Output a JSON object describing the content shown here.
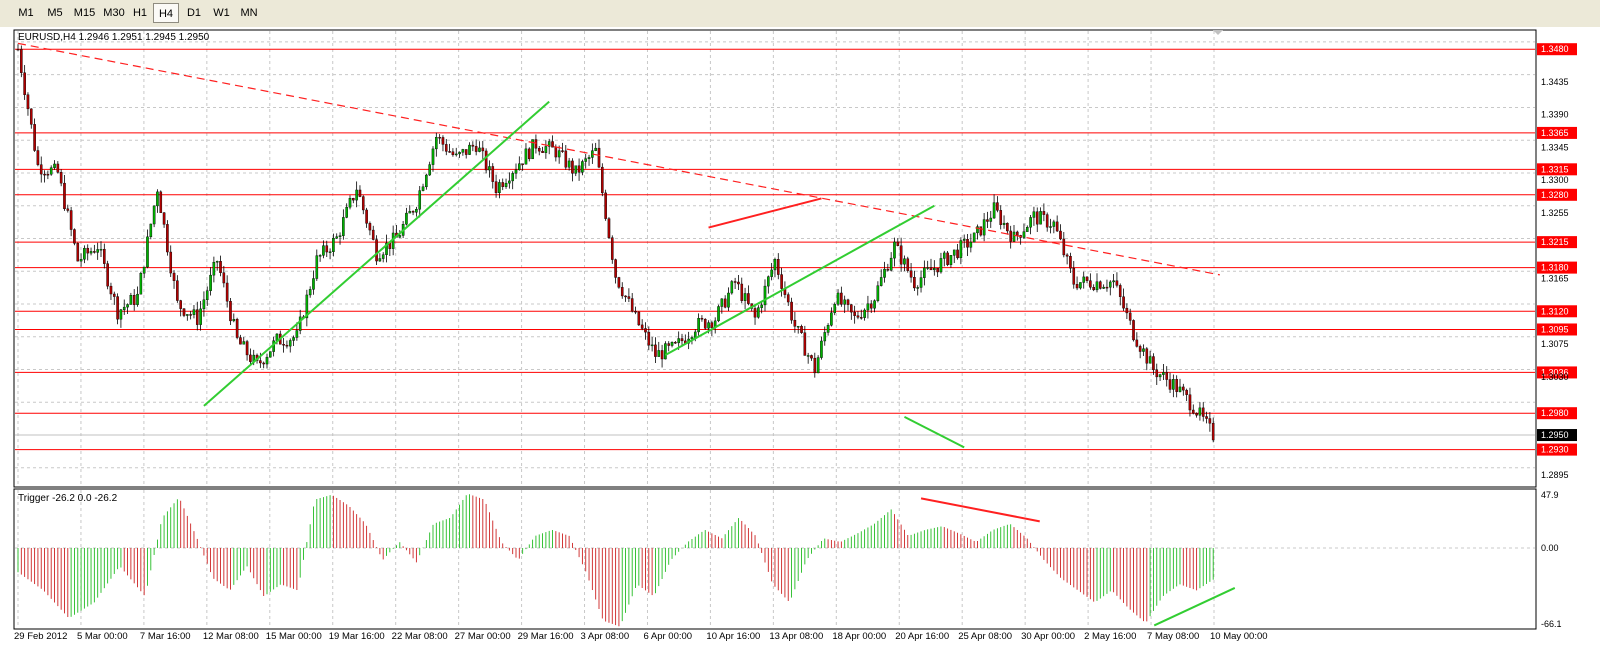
{
  "toolbar": {
    "timeframes": [
      {
        "label": "M1",
        "active": false
      },
      {
        "label": "M5",
        "active": false
      },
      {
        "label": "M15",
        "active": false
      },
      {
        "label": "M30",
        "active": false
      },
      {
        "label": "H1",
        "active": false
      },
      {
        "label": "H4",
        "active": true
      },
      {
        "label": "D1",
        "active": false
      },
      {
        "label": "W1",
        "active": false
      },
      {
        "label": "MN",
        "active": false
      }
    ]
  },
  "main_chart": {
    "header": "EURUSD,H4  1.2946 1.2951 1.2945 1.2950",
    "symbol": "EURUSD",
    "timeframe": "H4",
    "ohlc": {
      "open": 1.2946,
      "high": 1.2951,
      "low": 1.2945,
      "close": 1.295
    },
    "current_price": "1.2950",
    "price_axis_labels": [
      "1.3435",
      "1.3390",
      "1.3345",
      "1.3300",
      "1.3255",
      "1.3165",
      "1.3075",
      "1.3030",
      "1.2895"
    ],
    "level_labels": [
      "1.3480",
      "1.3365",
      "1.3315",
      "1.3280",
      "1.3215",
      "1.3180",
      "1.3120",
      "1.3095",
      "1.3036",
      "1.2980",
      "1.2930"
    ],
    "colors": {
      "bull": "#00b000",
      "bear": "#b00000",
      "level": "#ff0000",
      "trend_green": "#32cd32",
      "trend_red": "#ff2020"
    }
  },
  "chart_data": [
    {
      "type": "candlestick",
      "title": "EURUSD,H4",
      "ylim": [
        1.288,
        1.3505
      ],
      "x_tick_labels": [
        "29 Feb 2012",
        "5 Mar 00:00",
        "7 Mar 16:00",
        "12 Mar 08:00",
        "15 Mar 00:00",
        "19 Mar 16:00",
        "22 Mar 08:00",
        "27 Mar 00:00",
        "29 Mar 16:00",
        "3 Apr 08:00",
        "6 Apr 00:00",
        "10 Apr 16:00",
        "13 Apr 08:00",
        "18 Apr 00:00",
        "20 Apr 16:00",
        "25 Apr 08:00",
        "30 Apr 00:00",
        "2 May 16:00",
        "7 May 08:00",
        "10 May 00:00"
      ],
      "close_path": [
        [
          0,
          1.348
        ],
        [
          6,
          1.332
        ],
        [
          12,
          1.331
        ],
        [
          18,
          1.319
        ],
        [
          24,
          1.321
        ],
        [
          30,
          1.312
        ],
        [
          36,
          1.314
        ],
        [
          42,
          1.329
        ],
        [
          48,
          1.313
        ],
        [
          54,
          1.311
        ],
        [
          60,
          1.319
        ],
        [
          66,
          1.308
        ],
        [
          72,
          1.3045
        ],
        [
          78,
          1.308
        ],
        [
          84,
          1.3085
        ],
        [
          90,
          1.319
        ],
        [
          96,
          1.322
        ],
        [
          102,
          1.329
        ],
        [
          108,
          1.32
        ],
        [
          114,
          1.322
        ],
        [
          120,
          1.327
        ],
        [
          126,
          1.336
        ],
        [
          132,
          1.333
        ],
        [
          138,
          1.335
        ],
        [
          144,
          1.329
        ],
        [
          150,
          1.332
        ],
        [
          156,
          1.335
        ],
        [
          162,
          1.334
        ],
        [
          168,
          1.331
        ],
        [
          174,
          1.334
        ],
        [
          180,
          1.317
        ],
        [
          186,
          1.311
        ],
        [
          192,
          1.306
        ],
        [
          198,
          1.307
        ],
        [
          204,
          1.31
        ],
        [
          210,
          1.311
        ],
        [
          216,
          1.316
        ],
        [
          222,
          1.311
        ],
        [
          228,
          1.319
        ],
        [
          234,
          1.31
        ],
        [
          240,
          1.304
        ],
        [
          246,
          1.314
        ],
        [
          252,
          1.311
        ],
        [
          258,
          1.314
        ],
        [
          264,
          1.321
        ],
        [
          270,
          1.316
        ],
        [
          276,
          1.318
        ],
        [
          282,
          1.32
        ],
        [
          288,
          1.322
        ],
        [
          294,
          1.326
        ],
        [
          300,
          1.322
        ],
        [
          306,
          1.325
        ],
        [
          312,
          1.324
        ],
        [
          318,
          1.316
        ],
        [
          324,
          1.316
        ],
        [
          330,
          1.316
        ],
        [
          336,
          1.309
        ],
        [
          342,
          1.304
        ],
        [
          348,
          1.302
        ],
        [
          354,
          1.299
        ],
        [
          360,
          1.295
        ]
      ],
      "trendlines": [
        {
          "color": "red",
          "style": "dashed",
          "from": [
            0,
            1.3488
          ],
          "to": [
            362,
            1.317
          ]
        },
        {
          "color": "green",
          "from": [
            56,
            1.299
          ],
          "to": [
            160,
            1.3408
          ]
        },
        {
          "color": "green",
          "from": [
            195,
            1.306
          ],
          "to": [
            276,
            1.3265
          ]
        },
        {
          "color": "red",
          "from": [
            208,
            1.3235
          ],
          "to": [
            242,
            1.3275
          ]
        },
        {
          "color": "green",
          "from": [
            267,
            1.2975
          ],
          "to": [
            285,
            1.2933
          ]
        }
      ]
    },
    {
      "type": "histogram",
      "title": "Trigger",
      "header": "Trigger -26.2 0.0 -26.2",
      "values_last": [
        -26.2,
        0.0,
        -26.2
      ],
      "ylim": [
        -66.1,
        47.9
      ],
      "y_tick_labels": [
        "47.9",
        "0.00",
        "-66.1"
      ],
      "envelope": [
        [
          0,
          -20
        ],
        [
          6,
          -35
        ],
        [
          12,
          -58
        ],
        [
          18,
          -45
        ],
        [
          24,
          -15
        ],
        [
          30,
          -40
        ],
        [
          34,
          25
        ],
        [
          38,
          42
        ],
        [
          42,
          10
        ],
        [
          46,
          -25
        ],
        [
          50,
          -35
        ],
        [
          54,
          -15
        ],
        [
          58,
          -40
        ],
        [
          62,
          -30
        ],
        [
          66,
          -35
        ],
        [
          70,
          40
        ],
        [
          74,
          44
        ],
        [
          78,
          35
        ],
        [
          82,
          20
        ],
        [
          86,
          -10
        ],
        [
          90,
          5
        ],
        [
          94,
          -12
        ],
        [
          98,
          20
        ],
        [
          102,
          25
        ],
        [
          106,
          45
        ],
        [
          110,
          40
        ],
        [
          114,
          5
        ],
        [
          118,
          -10
        ],
        [
          122,
          10
        ],
        [
          126,
          15
        ],
        [
          130,
          10
        ],
        [
          134,
          -20
        ],
        [
          138,
          -60
        ],
        [
          142,
          -65
        ],
        [
          146,
          -30
        ],
        [
          150,
          -40
        ],
        [
          154,
          -10
        ],
        [
          158,
          5
        ],
        [
          162,
          15
        ],
        [
          166,
          8
        ],
        [
          170,
          25
        ],
        [
          174,
          10
        ],
        [
          178,
          -30
        ],
        [
          182,
          -45
        ],
        [
          186,
          -10
        ],
        [
          190,
          8
        ],
        [
          194,
          5
        ],
        [
          198,
          12
        ],
        [
          202,
          20
        ],
        [
          206,
          32
        ],
        [
          210,
          10
        ],
        [
          214,
          15
        ],
        [
          218,
          18
        ],
        [
          222,
          12
        ],
        [
          226,
          5
        ],
        [
          230,
          15
        ],
        [
          234,
          20
        ],
        [
          238,
          8
        ],
        [
          242,
          -10
        ],
        [
          246,
          -25
        ],
        [
          250,
          -35
        ],
        [
          254,
          -45
        ],
        [
          258,
          -35
        ],
        [
          262,
          -50
        ],
        [
          266,
          -62
        ],
        [
          270,
          -40
        ],
        [
          274,
          -30
        ],
        [
          278,
          -35
        ],
        [
          282,
          -26
        ]
      ],
      "trendlines": [
        {
          "color": "red",
          "from": [
            213,
            41
          ],
          "to": [
            241,
            22
          ]
        },
        {
          "color": "green",
          "from": [
            268,
            -64
          ],
          "to": [
            287,
            -33
          ]
        }
      ]
    }
  ]
}
